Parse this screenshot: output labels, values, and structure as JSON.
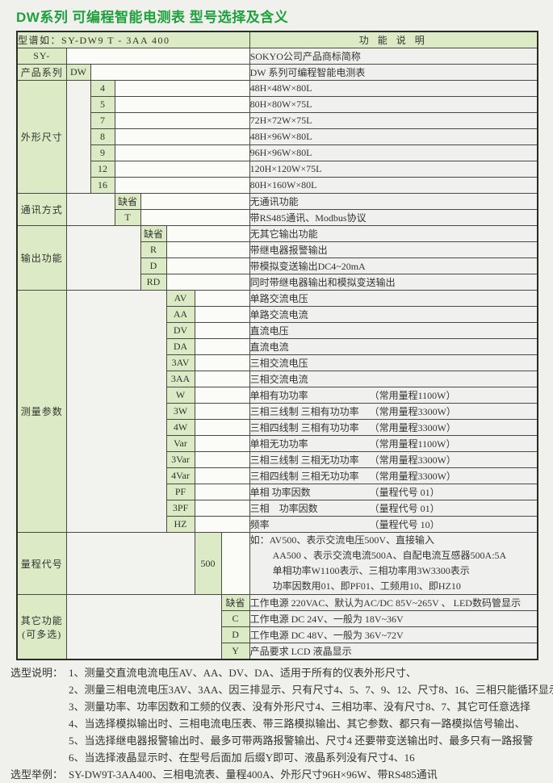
{
  "title": "DW系列 可编程智能电测表 型号选择及含义",
  "table": {
    "header": {
      "model": "型谱如：SY-DW9 T - 3AA 400",
      "desc": "功 能 说 明"
    },
    "sections": [
      {
        "id": "sy",
        "label": "SY-",
        "rows": [
          {
            "desc": "SOKYO公司产品商标简称"
          }
        ]
      },
      {
        "id": "series",
        "label": "产品系列",
        "rows": [
          {
            "code": "DW",
            "desc": "DW 系列可编程智能电测表"
          }
        ]
      },
      {
        "id": "size",
        "label": "外形尺寸",
        "rows": [
          {
            "code": "4",
            "desc": "48H×48W×80L"
          },
          {
            "code": "5",
            "desc": "80H×80W×75L"
          },
          {
            "code": "7",
            "desc": "72H×72W×75L"
          },
          {
            "code": "8",
            "desc": "48H×96W×80L"
          },
          {
            "code": "9",
            "desc": "96H×96W×80L"
          },
          {
            "code": "12",
            "desc": "120H×120W×75L"
          },
          {
            "code": "16",
            "desc": "80H×160W×80L"
          }
        ]
      },
      {
        "id": "comm",
        "label": "通讯方式",
        "rows": [
          {
            "code": "缺省",
            "desc": "无通讯功能"
          },
          {
            "code": "T",
            "desc": "带RS485通讯、Modbus协议"
          }
        ]
      },
      {
        "id": "output",
        "label": "输出功能",
        "rows": [
          {
            "code": "缺省",
            "desc": "无其它输出功能"
          },
          {
            "code": "R",
            "desc": "带继电器报警输出"
          },
          {
            "code": "D",
            "desc": "带模拟变送输出DC4~20mA"
          },
          {
            "code": "RD",
            "desc": "同时带继电器输出和模拟变送输出"
          }
        ]
      },
      {
        "id": "param",
        "label": "测量参数",
        "rows": [
          {
            "code": "AV",
            "desc": "单路交流电压"
          },
          {
            "code": "AA",
            "desc": "单路交流电流"
          },
          {
            "code": "DV",
            "desc": "直流电压"
          },
          {
            "code": "DA",
            "desc": "直流电流"
          },
          {
            "code": "3AV",
            "desc": "三相交流电压"
          },
          {
            "code": "3AA",
            "desc": "三相交流电流"
          },
          {
            "code": "W",
            "desc": "单相有功功率",
            "note": "（常用量程1100W）"
          },
          {
            "code": "3W",
            "desc": "三相三线制 三相有功功率",
            "note": "（常用量程3300W）"
          },
          {
            "code": "4W",
            "desc": "三相四线制 三相有功功率",
            "note": "（常用量程3300W）"
          },
          {
            "code": "Var",
            "desc": "单相无功功率",
            "note": "（常用量程1100W）"
          },
          {
            "code": "3Var",
            "desc": "三相三线制 三相无功功率",
            "note": "（常用量程3300W）"
          },
          {
            "code": "4Var",
            "desc": "三相四线制 三相无功功率",
            "note": "（常用量程3300W）"
          },
          {
            "code": "PF",
            "desc": "单相 功率因数",
            "note": "（量程代号 01）"
          },
          {
            "code": "3PF",
            "desc": "三相　功率因数",
            "note": "（量程代号 01）"
          },
          {
            "code": "HZ",
            "desc": "频率",
            "note": "（量程代号 10）"
          }
        ]
      },
      {
        "id": "range",
        "label": "量程代号",
        "rows": [
          {
            "code": "500",
            "lines": [
              "如：AV500、表示交流电压500V、直接输入",
              "AA500 、表示交流电流500A、自配电流互感器500A:5A",
              "单相功率W1100表示、三相功率用3W3300表示",
              "功率因数用01、即PF01、工频用10、即HZ10"
            ]
          }
        ]
      },
      {
        "id": "other",
        "label": "其它功能",
        "label2": "(可多选)",
        "rows": [
          {
            "code": "缺省",
            "desc": "工作电源 220VAC、默认为AC/DC 85V~265V 、 LED数码管显示"
          },
          {
            "code": "C",
            "desc": "工作电源 DC 24V、一般为 18V~36V"
          },
          {
            "code": "D",
            "desc": "工作电源 DC 48V、一般为 36V~72V"
          },
          {
            "code": "Y",
            "desc": "产品要求 LCD 液晶显示"
          }
        ]
      }
    ]
  },
  "notes": {
    "notes_label": "选型说明：",
    "items": [
      "1、测量交直流电流电压AV、AA、DV、DA、适用于所有的仪表外形尺寸、",
      "2、测量三相电流电压3AV、3AA、因三排显示、只有尺寸4、5、7、9、12、尺寸8、16、三相只能循环显示",
      "3、测量功率、功率因数和工频的仪表、没有外形尺寸4、三相功率、没有尺寸8、7、其它可任意选择",
      "4、当选择模拟输出时、三相电流电压表、带三路模拟输出、其它参数、都只有一路模拟信号输出、",
      "5、当选择继电器报警输出时、最多可带两路报警输出、尺寸4 还要带变送输出时、最多只有一路报警",
      "6、当选择液晶显示时、在型号后面加 后缀Y即可、液晶系列没有尺寸4、16"
    ],
    "example_label": "选型举例：",
    "example": "SY-DW9T-3AA400、三相电流表、量程400A、外形尺寸96H×96W、带RS485通讯"
  },
  "colors": {
    "title_green": "#1ea13c",
    "cell_green": "#dcebc6",
    "page_bg": "#f0f0ed"
  }
}
